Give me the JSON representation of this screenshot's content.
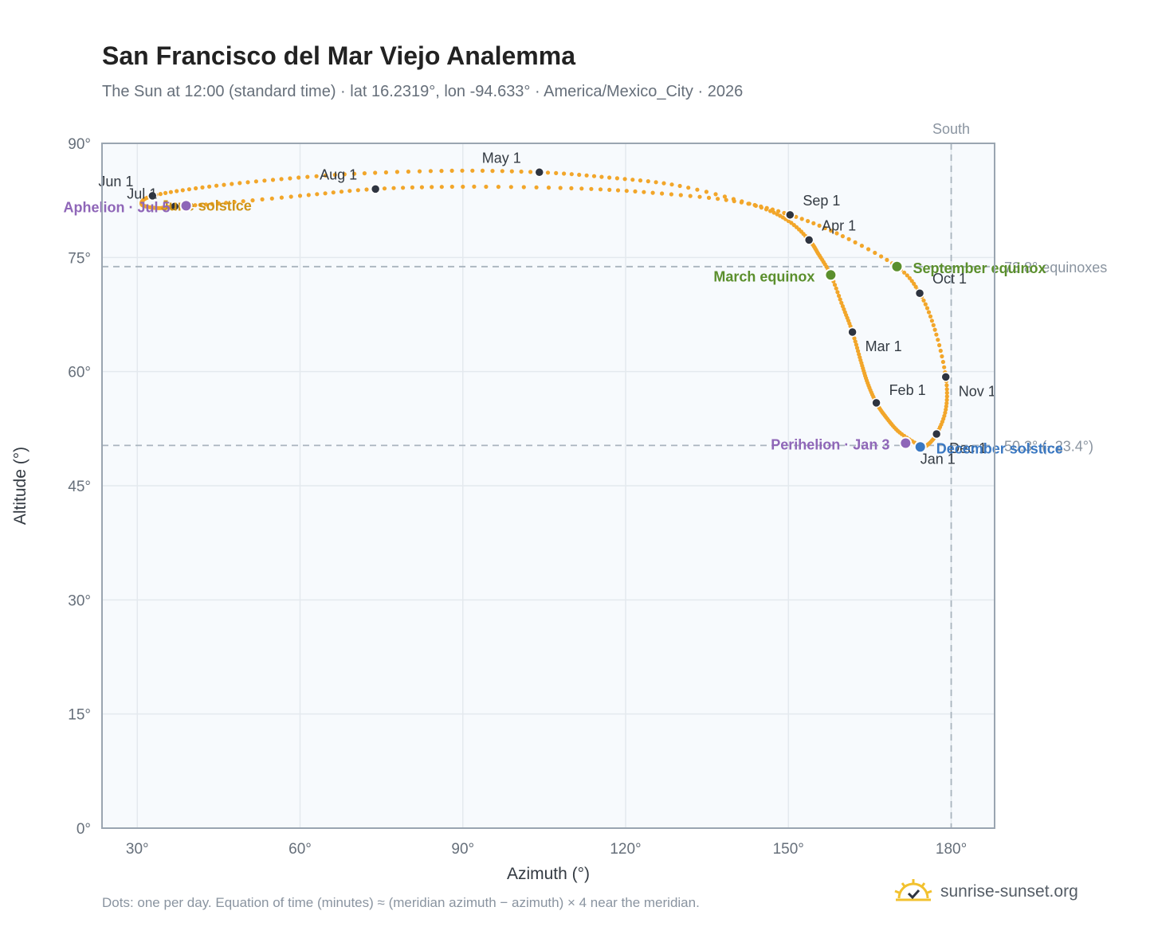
{
  "title": "San Francisco del Mar Viejo Analemma",
  "subtitle": "The Sun at 12:00 (standard time) · lat 16.2319°, lon -94.633° · America/Mexico_City · 2026",
  "footnote": "Dots: one per day. Equation of time (minutes) ≈ (meridian azimuth − azimuth) × 4 near the meridian.",
  "brand": {
    "text": "sunrise-sunset.org",
    "icon": "sun-check-icon"
  },
  "colors": {
    "curve": "#f2a62a",
    "month_dot": "#2e3440",
    "equinox": "#5b8f2d",
    "solstice_dec": "#3a78c2",
    "solstice_jun": "#cf9418",
    "apsis": "#8f66b8",
    "reference": "#a9b4be",
    "plot_bg": "#f7fafd",
    "grid": "#e4e9ee",
    "frame": "#9aa5b1"
  },
  "chart_data": {
    "type": "scatter",
    "title": "San Francisco del Mar Viejo Analemma",
    "xlabel": "Azimuth (°)",
    "ylabel": "Altitude (°)",
    "xlim": [
      23.5,
      188
    ],
    "ylim": [
      0,
      90
    ],
    "x_ticks": [
      30,
      60,
      90,
      120,
      150,
      180
    ],
    "y_ticks": [
      0,
      15,
      30,
      45,
      60,
      75,
      90
    ],
    "x_tick_labels": [
      "30°",
      "60°",
      "90°",
      "120°",
      "150°",
      "180°"
    ],
    "y_tick_labels": [
      "0°",
      "15°",
      "30°",
      "45°",
      "60°",
      "75°",
      "90°"
    ],
    "grid": true,
    "meridian": {
      "azimuth": 180,
      "label": "South"
    },
    "reference_lines": [
      {
        "altitude": 73.8,
        "label": "73.8° equinoxes"
      },
      {
        "altitude": 50.3,
        "label": "50.3° (−23.4°)"
      }
    ],
    "month_markers": [
      {
        "label": "Jan 1",
        "az": 174.3,
        "alt": 50.2
      },
      {
        "label": "Feb 1",
        "az": 166.2,
        "alt": 55.9
      },
      {
        "label": "Mar 1",
        "az": 161.8,
        "alt": 65.2
      },
      {
        "label": "Apr 1",
        "az": 153.8,
        "alt": 77.3
      },
      {
        "label": "May 1",
        "az": 104.1,
        "alt": 86.2
      },
      {
        "label": "Jun 1",
        "az": 32.8,
        "alt": 83.1
      },
      {
        "label": "Jul 1",
        "az": 36.9,
        "alt": 81.7
      },
      {
        "label": "Aug 1",
        "az": 73.9,
        "alt": 84.0
      },
      {
        "label": "Sep 1",
        "az": 150.3,
        "alt": 80.6
      },
      {
        "label": "Oct 1",
        "az": 174.2,
        "alt": 70.3
      },
      {
        "label": "Nov 1",
        "az": 179.0,
        "alt": 59.3
      },
      {
        "label": "Dec 1",
        "az": 177.3,
        "alt": 51.8
      }
    ],
    "events": [
      {
        "label": "March equinox",
        "az": 157.8,
        "alt": 72.7,
        "kind": "equinox"
      },
      {
        "label": "September equinox",
        "az": 170.0,
        "alt": 73.8,
        "kind": "equinox"
      },
      {
        "label": "June solstice",
        "az": 30.8,
        "alt": 82.0,
        "kind": "solstice_jun"
      },
      {
        "label": "December solstice",
        "az": 174.3,
        "alt": 50.1,
        "kind": "solstice_dec"
      },
      {
        "label": "Perihelion · Jan 3",
        "az": 171.6,
        "alt": 50.6,
        "kind": "apsis"
      },
      {
        "label": "Aphelion · Jul 5",
        "az": 39.0,
        "alt": 81.8,
        "kind": "apsis"
      }
    ],
    "curve_anchors": [
      [
        174.3,
        50.2
      ],
      [
        170.5,
        52.0
      ],
      [
        168.0,
        54.0
      ],
      [
        166.2,
        55.9
      ],
      [
        164.6,
        58.5
      ],
      [
        163.3,
        61.5
      ],
      [
        161.8,
        65.2
      ],
      [
        160.0,
        68.6
      ],
      [
        157.8,
        72.7
      ],
      [
        155.5,
        75.5
      ],
      [
        153.8,
        77.3
      ],
      [
        150.0,
        79.8
      ],
      [
        144.0,
        81.8
      ],
      [
        130.0,
        84.4
      ],
      [
        117.0,
        85.5
      ],
      [
        104.1,
        86.2
      ],
      [
        88.0,
        86.4
      ],
      [
        70.0,
        86.0
      ],
      [
        55.0,
        85.2
      ],
      [
        42.0,
        84.2
      ],
      [
        32.8,
        83.1
      ],
      [
        30.8,
        82.0
      ],
      [
        33.5,
        81.5
      ],
      [
        36.9,
        81.7
      ],
      [
        45.0,
        82.1
      ],
      [
        60.0,
        83.1
      ],
      [
        73.9,
        84.0
      ],
      [
        90.0,
        84.3
      ],
      [
        110.0,
        84.1
      ],
      [
        125.0,
        83.5
      ],
      [
        140.0,
        82.4
      ],
      [
        150.3,
        80.6
      ],
      [
        160.0,
        77.8
      ],
      [
        170.0,
        73.8
      ],
      [
        174.2,
        70.3
      ],
      [
        177.0,
        65.5
      ],
      [
        179.0,
        59.3
      ],
      [
        179.0,
        55.0
      ],
      [
        177.3,
        51.8
      ],
      [
        175.5,
        50.3
      ],
      [
        174.3,
        50.2
      ]
    ]
  }
}
